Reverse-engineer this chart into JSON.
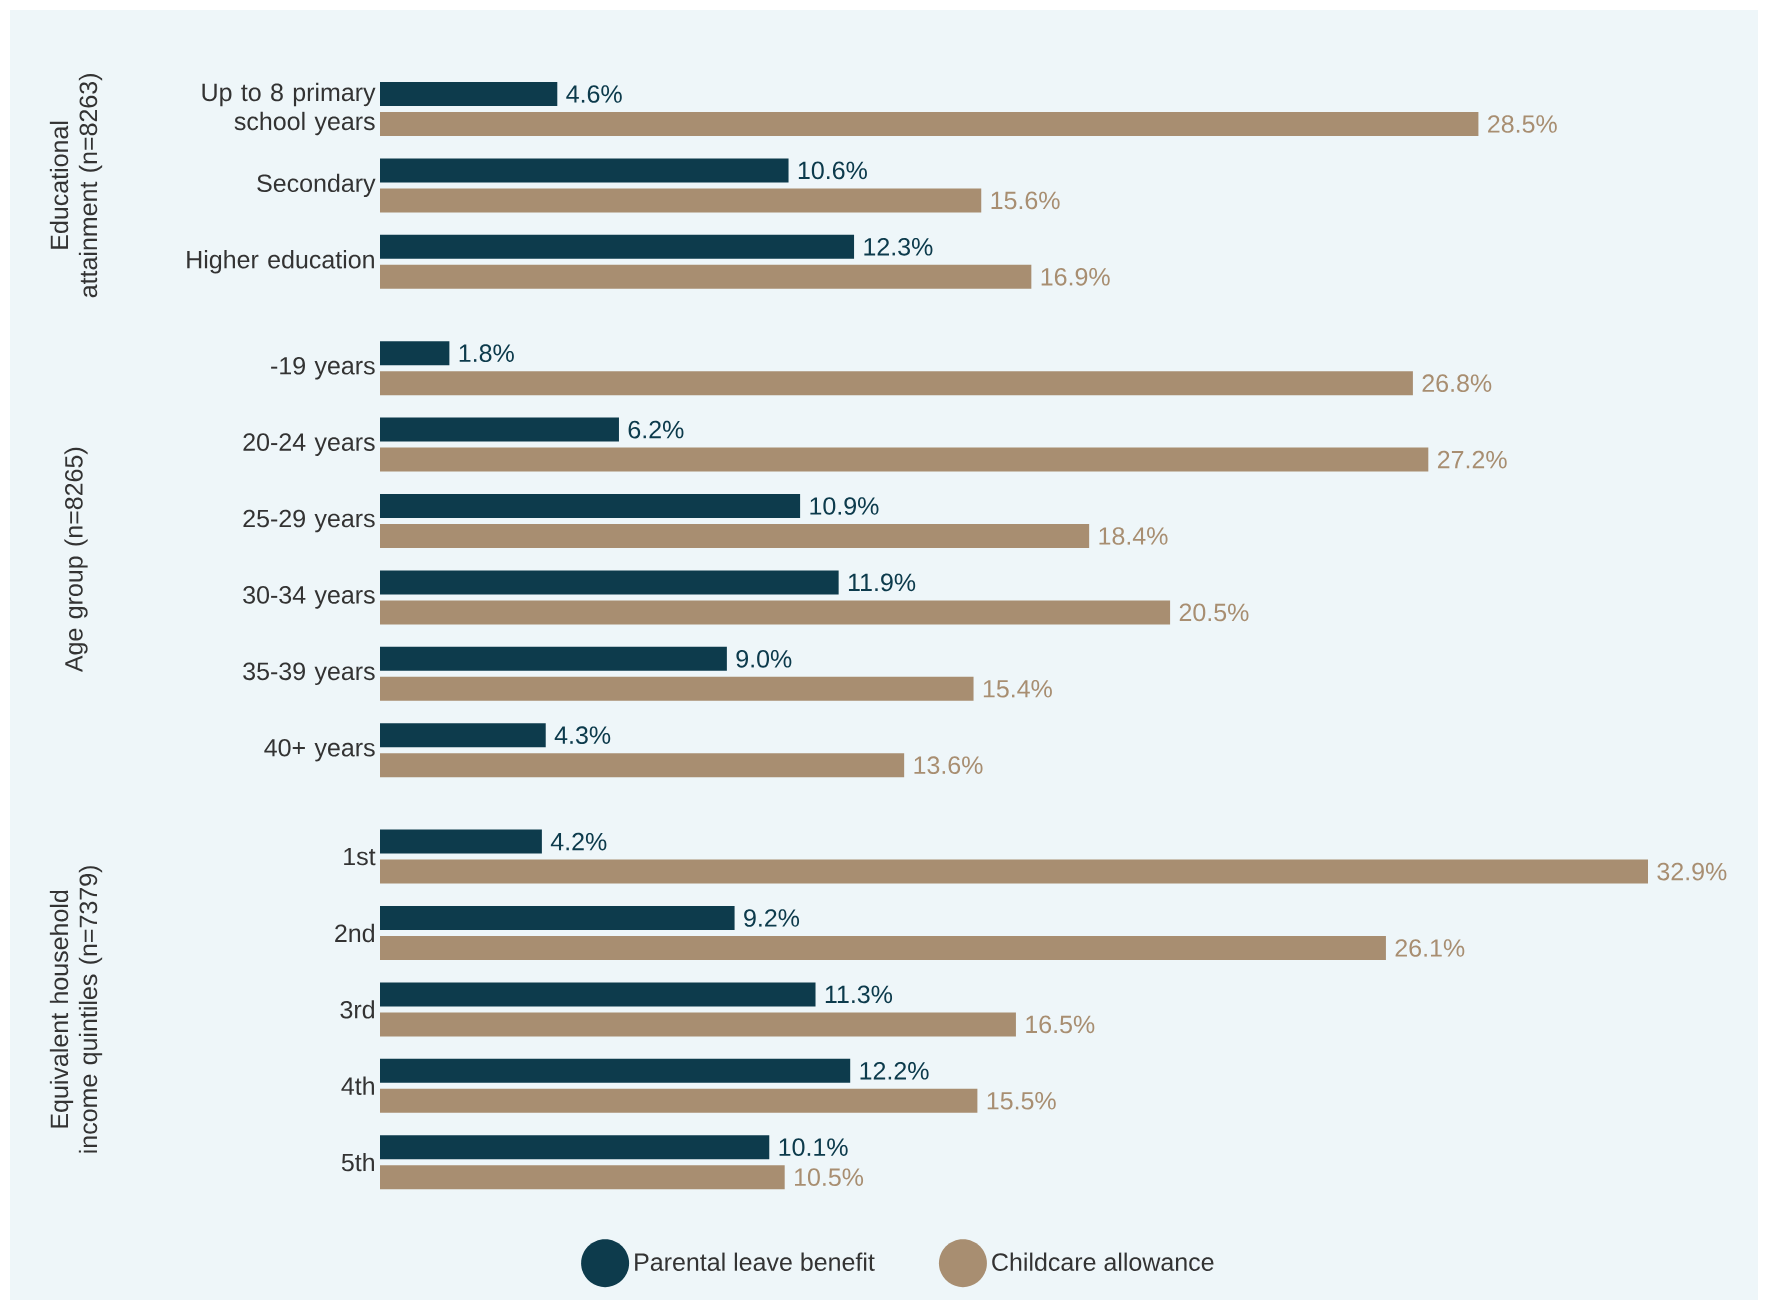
{
  "chart_data": [
    {
      "type": "bar",
      "orientation": "horizontal",
      "ylabel": "Educational attainment (n=8263)",
      "categories": [
        "Up to 8 primary school years",
        "Secondary",
        "Higher education"
      ],
      "series": [
        {
          "color": "#0d3b4c",
          "values": [
            4.6,
            10.6,
            12.3
          ],
          "value_labels": [
            "4.6%",
            "10.6%",
            "12.3%"
          ]
        },
        {
          "color": "#a88e71",
          "values": [
            28.5,
            15.6,
            16.9
          ],
          "value_labels": [
            "28.5%",
            "15.6%",
            "16.9%"
          ]
        }
      ]
    },
    {
      "type": "bar",
      "orientation": "horizontal",
      "ylabel": "Age group (n=8265)",
      "categories": [
        "-19 years",
        "20-24 years",
        "25-29 years",
        "30-34 years",
        "35-39 years",
        "40+ years"
      ],
      "series": [
        {
          "color": "#0d3b4c",
          "values": [
            1.8,
            6.2,
            10.9,
            11.9,
            9.0,
            4.3
          ],
          "value_labels": [
            "1.8%",
            "6.2%",
            "10.9%",
            "11.9%",
            "9.0%",
            "4.3%"
          ]
        },
        {
          "color": "#a88e71",
          "values": [
            26.8,
            27.2,
            18.4,
            20.5,
            15.4,
            13.6
          ],
          "value_labels": [
            "26.8%",
            "27.2%",
            "18.4%",
            "20.5%",
            "15.4%",
            "13.6%"
          ]
        }
      ]
    },
    {
      "type": "bar",
      "orientation": "horizontal",
      "ylabel": "Equivalent household income quintiles (n=7379)",
      "categories": [
        "1st",
        "2nd",
        "3rd",
        "4th",
        "5th"
      ],
      "legend": "bottom",
      "series": [
        {
          "name": "Parental leave benefit",
          "color": "#0d3b4c",
          "values": [
            4.2,
            9.2,
            11.3,
            12.2,
            10.1
          ],
          "value_labels": [
            "4.2%",
            "9.2%",
            "11.3%",
            "12.2%",
            "10.1%"
          ]
        },
        {
          "name": "Childcare allowance",
          "color": "#a88e71",
          "values": [
            32.9,
            26.1,
            16.5,
            15.5,
            10.5
          ],
          "value_labels": [
            "32.9%",
            "26.1%",
            "16.5%",
            "15.5%",
            "10.5%"
          ]
        }
      ]
    }
  ]
}
